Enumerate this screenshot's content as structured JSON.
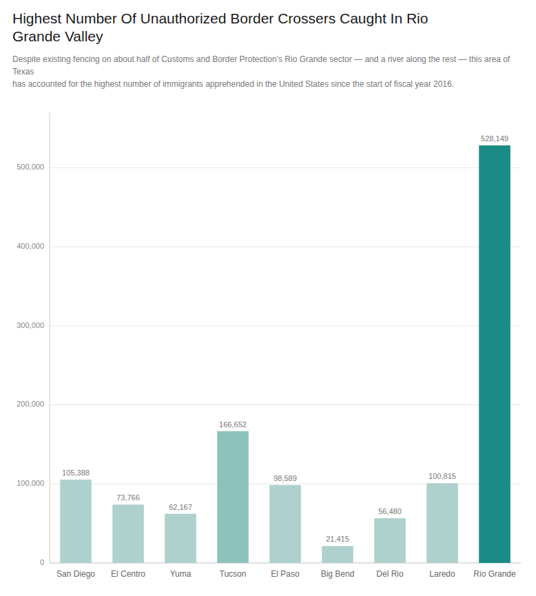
{
  "chart_data": {
    "type": "bar",
    "title": "Highest Number Of Unauthorized Border Crossers Caught In Rio\nGrande Valley",
    "subtitle": "Despite existing fencing on about half of Customs and Border Protection’s Rio Grande sector — and a river along the rest — this area of Texas\nhas accounted for the highest number of immigrants apprehended in the United States since the start of fiscal year 2016.",
    "categories": [
      "San Diego",
      "El Centro",
      "Yuma",
      "Tucson",
      "El Paso",
      "Big Bend",
      "Del Rio",
      "Laredo",
      "Rio Grande"
    ],
    "values": [
      105388,
      73766,
      62167,
      166652,
      98589,
      21415,
      56480,
      100815,
      528149
    ],
    "value_labels": [
      "105,388",
      "73,766",
      "62,167",
      "166,652",
      "98,589",
      "21,415",
      "56,480",
      "100,815",
      "528,149"
    ],
    "colors": [
      "#aed1cd",
      "#aed1cd",
      "#aed1cd",
      "#8dc2bc",
      "#aed1cd",
      "#aed1cd",
      "#aed1cd",
      "#aed1cd",
      "#1a8c85"
    ],
    "ylim": [
      0,
      570000
    ],
    "yticks": [
      0,
      {
        "value": 100000,
        "label": "100,000"
      },
      {
        "value": 200000,
        "label": "200,000"
      },
      {
        "value": 300000,
        "label": "300,000"
      },
      {
        "value": 400000,
        "label": "400,000"
      },
      {
        "value": 500000,
        "label": "500,000"
      }
    ],
    "grid": true,
    "data_labels": true
  }
}
